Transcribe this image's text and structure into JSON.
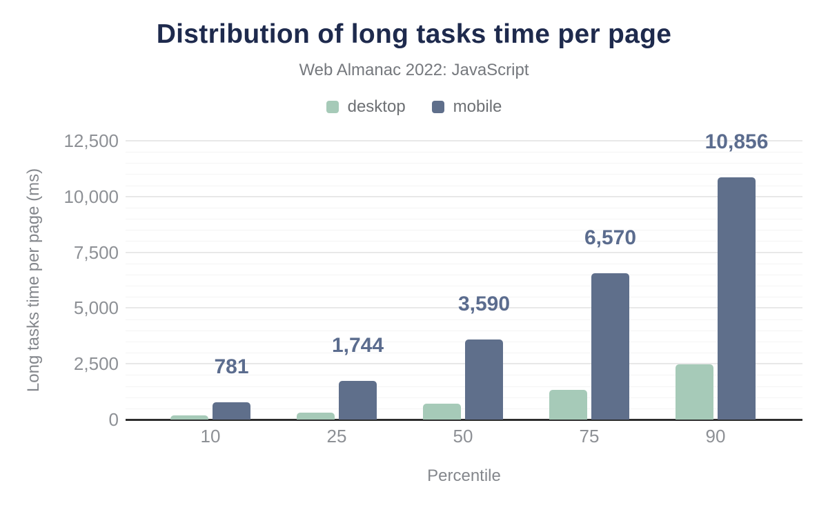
{
  "header": {
    "title": "Distribution of long tasks time per page",
    "subtitle": "Web Almanac 2022: JavaScript"
  },
  "colors": {
    "title": "#1e2a4d",
    "subtitle": "#75787d",
    "tick_text": "#8d9095",
    "axis_title_text": "#84878c",
    "data_label": "#5b6c8e",
    "desktop": "#a6cab8",
    "mobile": "#5f6f8b",
    "axis_line": "#2d2d2d",
    "grid_major": "#e8e8e8",
    "grid_minor": "#f4f4f4"
  },
  "chart_data": {
    "type": "bar",
    "title": "Distribution of long tasks time per page",
    "subtitle": "Web Almanac 2022: JavaScript",
    "categories": [
      "10",
      "25",
      "50",
      "75",
      "90"
    ],
    "xlabel": "Percentile",
    "ylabel": "Long tasks time per page (ms)",
    "ylim": [
      0,
      12500
    ],
    "ytick_interval": 2500,
    "minor_tick_interval": 500,
    "yticks": [
      "0",
      "2,500",
      "5,000",
      "7,500",
      "10,000",
      "12,500"
    ],
    "grid": true,
    "legend_position": "top",
    "series": [
      {
        "name": "desktop",
        "color": "#a6cab8",
        "values": [
          190,
          310,
          720,
          1330,
          2470
        ],
        "show_labels": false
      },
      {
        "name": "mobile",
        "color": "#5f6f8b",
        "values": [
          781,
          1744,
          3590,
          6570,
          10856
        ],
        "show_labels": true,
        "data_labels": [
          "781",
          "1,744",
          "3,590",
          "6,570",
          "10,856"
        ]
      }
    ]
  }
}
